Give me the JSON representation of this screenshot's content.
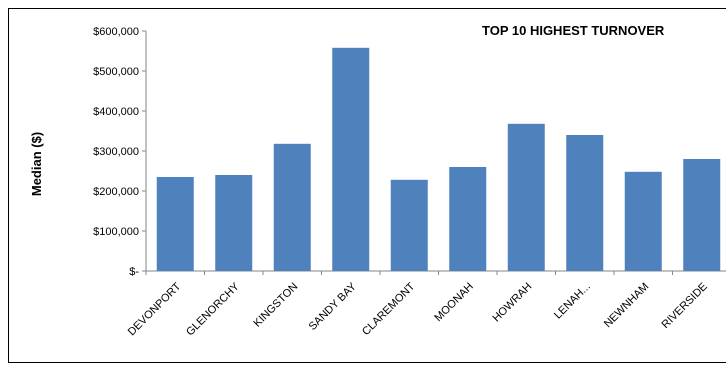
{
  "chart_data": {
    "type": "bar",
    "title": "TOP 10 HIGHEST TURNOVER",
    "xlabel": "",
    "ylabel": "Median ($)",
    "categories": [
      "DEVONPORT",
      "GLENORCHY",
      "KINGSTON",
      "SANDY BAY",
      "CLAREMONT",
      "MOONAH",
      "HOWRAH",
      "LENAH...",
      "NEWNHAM",
      "RIVERSIDE"
    ],
    "values": [
      235000,
      240000,
      318000,
      558000,
      228000,
      260000,
      368000,
      340000,
      248000,
      280000
    ],
    "ylim": [
      0,
      600000
    ],
    "yticks": [
      0,
      100000,
      200000,
      300000,
      400000,
      500000,
      600000
    ],
    "ytick_labels": [
      "$-",
      "$100,000",
      "$200,000",
      "$300,000",
      "$400,000",
      "$500,000",
      "$600,000"
    ],
    "bar_color": "#4F81BD",
    "grid": false,
    "legend": "none"
  }
}
